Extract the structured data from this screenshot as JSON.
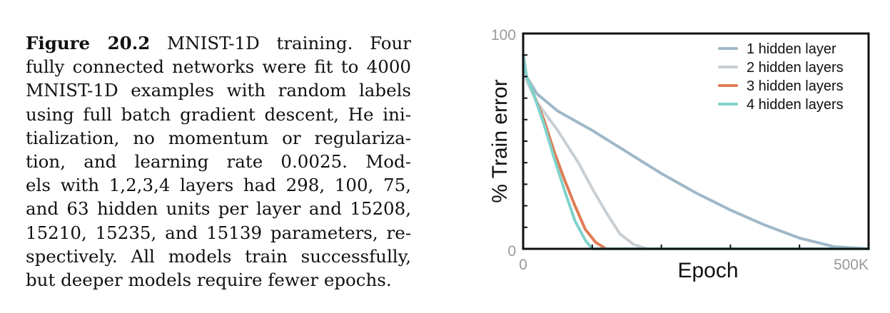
{
  "caption": {
    "label": "Figure 20.2",
    "lines": [
      " MNIST-1D training.  Four",
      "fully connected networks were fit to 4000",
      "MNIST-1D examples with random labels",
      "using full batch gradient descent, He ini-",
      "tialization, no momentum or regulariza-",
      "tion, and learning rate 0.0025.  Mod-",
      "els with 1,2,3,4 layers had 298, 100, 75,",
      "and 63 hidden units per layer and 15208,",
      "15210, 15235, and 15139 parameters, re-",
      "spectively. All models train successfully,",
      "but deeper models require fewer epochs."
    ]
  },
  "chart_data": {
    "type": "line",
    "xlabel": "Epoch",
    "ylabel": "% Train error",
    "xlim": [
      0,
      500000
    ],
    "ylim": [
      0,
      100
    ],
    "x_tick_labels": [
      "0",
      "500K"
    ],
    "y_tick_labels": [
      "100",
      "0"
    ],
    "legend_position": "top-right",
    "series": [
      {
        "name": "1 hidden layer",
        "color": "#9fb8c8",
        "points": [
          [
            0,
            90
          ],
          [
            5000,
            80
          ],
          [
            20000,
            72
          ],
          [
            50000,
            64
          ],
          [
            100000,
            55
          ],
          [
            150000,
            45
          ],
          [
            200000,
            35
          ],
          [
            250000,
            26
          ],
          [
            300000,
            18
          ],
          [
            350000,
            11
          ],
          [
            400000,
            5
          ],
          [
            450000,
            1
          ],
          [
            500000,
            0
          ]
        ]
      },
      {
        "name": "2 hidden layers",
        "color": "#c8cfd4",
        "points": [
          [
            0,
            90
          ],
          [
            5000,
            78
          ],
          [
            20000,
            68
          ],
          [
            50000,
            55
          ],
          [
            80000,
            40
          ],
          [
            100000,
            28
          ],
          [
            120000,
            17
          ],
          [
            140000,
            7
          ],
          [
            160000,
            2
          ],
          [
            180000,
            0
          ],
          [
            500000,
            0
          ]
        ]
      },
      {
        "name": "3 hidden layers",
        "color": "#e07c55",
        "points": [
          [
            0,
            90
          ],
          [
            5000,
            80
          ],
          [
            15000,
            72
          ],
          [
            30000,
            60
          ],
          [
            45000,
            45
          ],
          [
            60000,
            32
          ],
          [
            75000,
            20
          ],
          [
            90000,
            9
          ],
          [
            105000,
            3
          ],
          [
            120000,
            0
          ],
          [
            500000,
            0
          ]
        ]
      },
      {
        "name": "4 hidden layers",
        "color": "#7fd3cc",
        "points": [
          [
            0,
            90
          ],
          [
            5000,
            80
          ],
          [
            15000,
            72
          ],
          [
            30000,
            58
          ],
          [
            45000,
            42
          ],
          [
            60000,
            27
          ],
          [
            75000,
            13
          ],
          [
            90000,
            4
          ],
          [
            100000,
            0
          ],
          [
            500000,
            0
          ]
        ]
      }
    ]
  }
}
